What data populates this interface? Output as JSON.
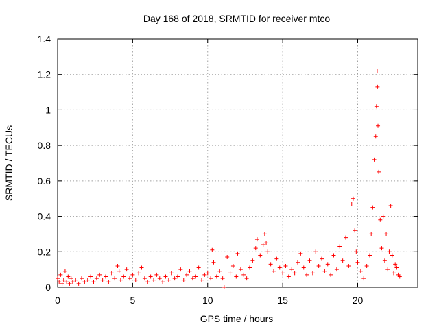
{
  "chart_data": {
    "type": "scatter",
    "title": "Day 168 of 2018, SRMTID for receiver mtco",
    "xlabel": "GPS time / hours",
    "ylabel": "SRMTID / TECUs",
    "xlim": [
      0,
      24
    ],
    "ylim": [
      0,
      1.4
    ],
    "x_ticks": [
      0,
      5,
      10,
      15,
      20
    ],
    "x_tick_labels": [
      "0",
      "5",
      "10",
      "15",
      "20"
    ],
    "y_ticks": [
      0,
      0.2,
      0.4,
      0.6,
      0.8,
      1,
      1.2,
      1.4
    ],
    "y_tick_labels": [
      "0",
      "0.2",
      "0.4",
      "0.6",
      "0.8",
      "1",
      "1.2",
      "1.4"
    ],
    "grid": true,
    "marker": "+",
    "marker_color": "#ff0000",
    "series": [
      {
        "name": "SRMTID",
        "color": "#ff0000",
        "points": [
          [
            0.0,
            0.05
          ],
          [
            0.1,
            0.03
          ],
          [
            0.2,
            0.07
          ],
          [
            0.3,
            0.02
          ],
          [
            0.4,
            0.04
          ],
          [
            0.5,
            0.09
          ],
          [
            0.6,
            0.03
          ],
          [
            0.7,
            0.06
          ],
          [
            0.8,
            0.02
          ],
          [
            0.9,
            0.05
          ],
          [
            1.0,
            0.03
          ],
          [
            1.2,
            0.04
          ],
          [
            1.4,
            0.02
          ],
          [
            1.6,
            0.05
          ],
          [
            1.8,
            0.03
          ],
          [
            2.0,
            0.04
          ],
          [
            2.2,
            0.06
          ],
          [
            2.4,
            0.03
          ],
          [
            2.6,
            0.05
          ],
          [
            2.8,
            0.07
          ],
          [
            3.0,
            0.04
          ],
          [
            3.2,
            0.06
          ],
          [
            3.4,
            0.03
          ],
          [
            3.6,
            0.08
          ],
          [
            3.8,
            0.05
          ],
          [
            4.0,
            0.12
          ],
          [
            4.1,
            0.09
          ],
          [
            4.2,
            0.04
          ],
          [
            4.4,
            0.06
          ],
          [
            4.6,
            0.1
          ],
          [
            4.8,
            0.05
          ],
          [
            5.0,
            0.07
          ],
          [
            5.2,
            0.04
          ],
          [
            5.4,
            0.08
          ],
          [
            5.6,
            0.11
          ],
          [
            5.8,
            0.05
          ],
          [
            6.0,
            0.03
          ],
          [
            6.2,
            0.06
          ],
          [
            6.4,
            0.04
          ],
          [
            6.6,
            0.07
          ],
          [
            6.8,
            0.05
          ],
          [
            7.0,
            0.03
          ],
          [
            7.2,
            0.06
          ],
          [
            7.4,
            0.04
          ],
          [
            7.6,
            0.08
          ],
          [
            7.8,
            0.05
          ],
          [
            8.0,
            0.06
          ],
          [
            8.2,
            0.1
          ],
          [
            8.4,
            0.04
          ],
          [
            8.6,
            0.07
          ],
          [
            8.8,
            0.09
          ],
          [
            9.0,
            0.05
          ],
          [
            9.2,
            0.06
          ],
          [
            9.4,
            0.11
          ],
          [
            9.6,
            0.04
          ],
          [
            9.8,
            0.07
          ],
          [
            10.0,
            0.08
          ],
          [
            10.2,
            0.05
          ],
          [
            10.3,
            0.21
          ],
          [
            10.4,
            0.14
          ],
          [
            10.6,
            0.06
          ],
          [
            10.8,
            0.09
          ],
          [
            11.0,
            0.05
          ],
          [
            11.1,
            0.0
          ],
          [
            11.3,
            0.17
          ],
          [
            11.5,
            0.08
          ],
          [
            11.7,
            0.12
          ],
          [
            11.9,
            0.06
          ],
          [
            12.0,
            0.19
          ],
          [
            12.2,
            0.1
          ],
          [
            12.4,
            0.07
          ],
          [
            12.6,
            0.05
          ],
          [
            12.8,
            0.11
          ],
          [
            13.0,
            0.15
          ],
          [
            13.2,
            0.22
          ],
          [
            13.3,
            0.27
          ],
          [
            13.5,
            0.18
          ],
          [
            13.7,
            0.24
          ],
          [
            13.8,
            0.3
          ],
          [
            13.9,
            0.25
          ],
          [
            14.0,
            0.2
          ],
          [
            14.2,
            0.13
          ],
          [
            14.4,
            0.09
          ],
          [
            14.6,
            0.16
          ],
          [
            14.8,
            0.11
          ],
          [
            15.0,
            0.08
          ],
          [
            15.2,
            0.12
          ],
          [
            15.4,
            0.06
          ],
          [
            15.6,
            0.1
          ],
          [
            15.8,
            0.08
          ],
          [
            16.0,
            0.14
          ],
          [
            16.2,
            0.19
          ],
          [
            16.4,
            0.11
          ],
          [
            16.6,
            0.07
          ],
          [
            16.8,
            0.15
          ],
          [
            17.0,
            0.08
          ],
          [
            17.2,
            0.2
          ],
          [
            17.4,
            0.12
          ],
          [
            17.6,
            0.16
          ],
          [
            17.8,
            0.09
          ],
          [
            18.0,
            0.13
          ],
          [
            18.2,
            0.07
          ],
          [
            18.4,
            0.18
          ],
          [
            18.6,
            0.1
          ],
          [
            18.8,
            0.23
          ],
          [
            19.0,
            0.15
          ],
          [
            19.2,
            0.28
          ],
          [
            19.4,
            0.12
          ],
          [
            19.6,
            0.47
          ],
          [
            19.7,
            0.5
          ],
          [
            19.8,
            0.32
          ],
          [
            19.9,
            0.2
          ],
          [
            20.0,
            0.14
          ],
          [
            20.2,
            0.09
          ],
          [
            20.4,
            0.05
          ],
          [
            20.6,
            0.12
          ],
          [
            20.8,
            0.18
          ],
          [
            20.9,
            0.3
          ],
          [
            21.0,
            0.45
          ],
          [
            21.1,
            0.72
          ],
          [
            21.2,
            0.85
          ],
          [
            21.25,
            1.02
          ],
          [
            21.3,
            1.22
          ],
          [
            21.32,
            1.13
          ],
          [
            21.35,
            0.91
          ],
          [
            21.4,
            0.65
          ],
          [
            21.5,
            0.38
          ],
          [
            21.6,
            0.22
          ],
          [
            21.7,
            0.4
          ],
          [
            21.8,
            0.15
          ],
          [
            21.9,
            0.3
          ],
          [
            22.0,
            0.1
          ],
          [
            22.1,
            0.2
          ],
          [
            22.2,
            0.46
          ],
          [
            22.3,
            0.18
          ],
          [
            22.4,
            0.08
          ],
          [
            22.5,
            0.13
          ],
          [
            22.6,
            0.11
          ],
          [
            22.7,
            0.07
          ],
          [
            22.8,
            0.06
          ]
        ]
      }
    ]
  }
}
